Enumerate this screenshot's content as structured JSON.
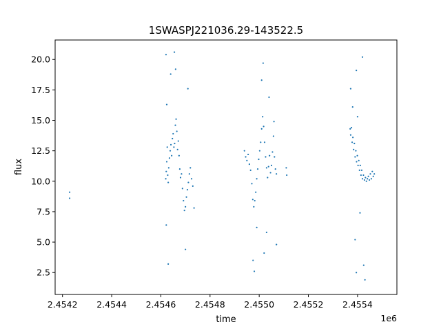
{
  "chart_data": {
    "type": "scatter",
    "title": "1SWASPJ221036.29-143522.5",
    "xlabel": "time",
    "ylabel": "flux",
    "x_offset_label": "1e6",
    "xlim": [
      2454170,
      2455560
    ],
    "ylim": [
      0.7,
      21.6
    ],
    "xticks": [
      2454200,
      2454400,
      2454600,
      2454800,
      2455000,
      2455200,
      2455400
    ],
    "xtick_labels": [
      "2.4542",
      "2.4544",
      "2.4546",
      "2.4548",
      "2.4550",
      "2.4552",
      "2.4554"
    ],
    "yticks": [
      2.5,
      5.0,
      7.5,
      10.0,
      12.5,
      15.0,
      17.5,
      20.0
    ],
    "ytick_labels": [
      "2.5",
      "5.0",
      "7.5",
      "10.0",
      "12.5",
      "15.0",
      "17.5",
      "20.0"
    ],
    "grid": false,
    "marker_color": "#1f77b4",
    "series": [
      {
        "points": [
          [
            2454229,
            9.1
          ],
          [
            2454229,
            8.6
          ],
          [
            2454620,
            10.2
          ],
          [
            2454622,
            10.8
          ],
          [
            2454624,
            11.6
          ],
          [
            2454626,
            12.8
          ],
          [
            2454628,
            10.5
          ],
          [
            2454630,
            9.9
          ],
          [
            2454632,
            11.1
          ],
          [
            2454635,
            11.9
          ],
          [
            2454638,
            12.5
          ],
          [
            2454641,
            13.0
          ],
          [
            2454644,
            12.1
          ],
          [
            2454647,
            13.5
          ],
          [
            2454650,
            13.9
          ],
          [
            2454653,
            12.8
          ],
          [
            2454656,
            13.1
          ],
          [
            2454659,
            14.6
          ],
          [
            2454662,
            15.1
          ],
          [
            2454665,
            14.1
          ],
          [
            2454668,
            12.6
          ],
          [
            2454671,
            13.3
          ],
          [
            2454674,
            12.1
          ],
          [
            2454677,
            11.0
          ],
          [
            2454680,
            10.3
          ],
          [
            2454684,
            10.6
          ],
          [
            2454688,
            9.4
          ],
          [
            2454692,
            8.4
          ],
          [
            2454696,
            7.6
          ],
          [
            2454700,
            7.9
          ],
          [
            2454704,
            8.7
          ],
          [
            2454708,
            9.3
          ],
          [
            2454712,
            9.9
          ],
          [
            2454716,
            10.6
          ],
          [
            2454720,
            11.1
          ],
          [
            2454725,
            10.2
          ],
          [
            2454730,
            9.6
          ],
          [
            2454621,
            20.4
          ],
          [
            2454624,
            16.3
          ],
          [
            2454640,
            18.8
          ],
          [
            2454655,
            20.6
          ],
          [
            2454660,
            19.2
          ],
          [
            2454622,
            6.4
          ],
          [
            2454630,
            3.2
          ],
          [
            2454700,
            4.4
          ],
          [
            2454710,
            17.6
          ],
          [
            2454735,
            7.8
          ],
          [
            2454940,
            12.5
          ],
          [
            2454945,
            12.0
          ],
          [
            2454950,
            11.7
          ],
          [
            2454955,
            12.2
          ],
          [
            2454960,
            11.4
          ],
          [
            2454965,
            10.9
          ],
          [
            2454970,
            9.8
          ],
          [
            2454974,
            8.5
          ],
          [
            2454978,
            7.9
          ],
          [
            2454982,
            8.4
          ],
          [
            2454986,
            9.1
          ],
          [
            2454990,
            10.2
          ],
          [
            2454994,
            11.0
          ],
          [
            2454998,
            11.8
          ],
          [
            2455002,
            12.5
          ],
          [
            2455006,
            13.2
          ],
          [
            2455010,
            14.3
          ],
          [
            2455014,
            15.3
          ],
          [
            2455018,
            14.5
          ],
          [
            2455022,
            13.2
          ],
          [
            2455026,
            12.0
          ],
          [
            2455030,
            11.1
          ],
          [
            2455034,
            10.3
          ],
          [
            2455038,
            11.2
          ],
          [
            2455042,
            12.1
          ],
          [
            2455046,
            10.7
          ],
          [
            2455050,
            11.3
          ],
          [
            2455054,
            12.4
          ],
          [
            2455058,
            13.7
          ],
          [
            2455062,
            12.0
          ],
          [
            2455066,
            11.0
          ],
          [
            2455070,
            10.6
          ],
          [
            2455110,
            11.1
          ],
          [
            2455112,
            10.5
          ],
          [
            2454975,
            3.5
          ],
          [
            2454980,
            2.6
          ],
          [
            2454990,
            6.2
          ],
          [
            2455010,
            18.3
          ],
          [
            2455016,
            19.7
          ],
          [
            2455020,
            4.1
          ],
          [
            2455030,
            5.8
          ],
          [
            2455040,
            16.9
          ],
          [
            2455060,
            14.9
          ],
          [
            2455070,
            4.8
          ],
          [
            2455370,
            14.3
          ],
          [
            2455372,
            13.8
          ],
          [
            2455375,
            14.4
          ],
          [
            2455378,
            13.2
          ],
          [
            2455381,
            13.6
          ],
          [
            2455384,
            12.6
          ],
          [
            2455387,
            13.1
          ],
          [
            2455390,
            12.0
          ],
          [
            2455393,
            12.5
          ],
          [
            2455396,
            11.6
          ],
          [
            2455399,
            12.1
          ],
          [
            2455402,
            11.3
          ],
          [
            2455405,
            11.7
          ],
          [
            2455408,
            10.9
          ],
          [
            2455411,
            11.3
          ],
          [
            2455414,
            10.5
          ],
          [
            2455417,
            10.9
          ],
          [
            2455420,
            10.2
          ],
          [
            2455424,
            10.5
          ],
          [
            2455428,
            10.1
          ],
          [
            2455432,
            10.3
          ],
          [
            2455436,
            10.0
          ],
          [
            2455440,
            10.2
          ],
          [
            2455444,
            10.4
          ],
          [
            2455448,
            10.1
          ],
          [
            2455452,
            10.6
          ],
          [
            2455456,
            10.2
          ],
          [
            2455460,
            10.8
          ],
          [
            2455464,
            10.4
          ],
          [
            2455468,
            10.6
          ],
          [
            2455372,
            17.6
          ],
          [
            2455380,
            16.1
          ],
          [
            2455395,
            19.1
          ],
          [
            2455420,
            20.2
          ],
          [
            2455400,
            15.3
          ],
          [
            2455390,
            5.2
          ],
          [
            2455395,
            2.5
          ],
          [
            2455410,
            7.4
          ],
          [
            2455425,
            3.1
          ],
          [
            2455430,
            1.9
          ]
        ]
      }
    ]
  }
}
